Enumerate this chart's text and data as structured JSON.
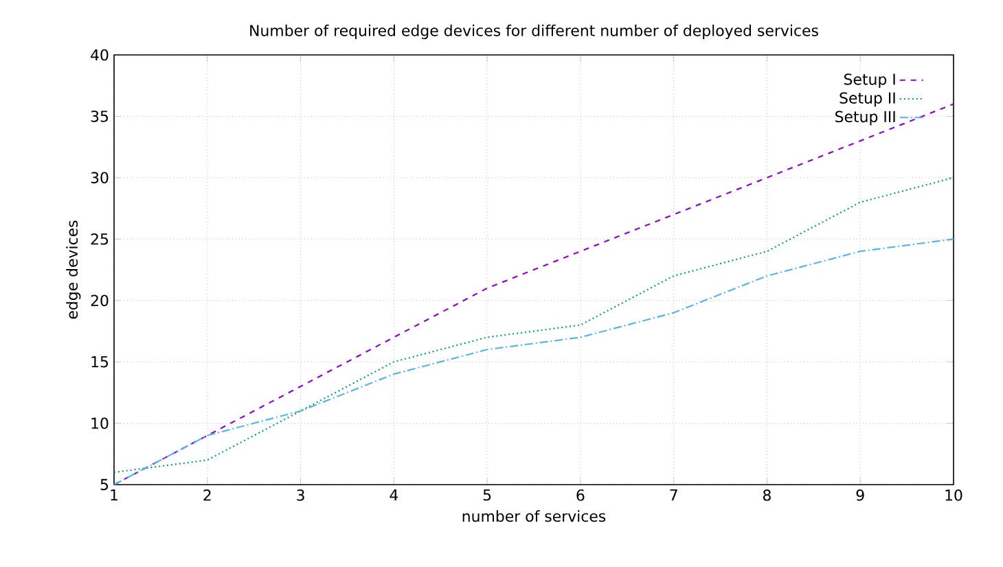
{
  "chart_data": {
    "type": "line",
    "title": "Number of required edge devices for different number of deployed services",
    "xlabel": "number of services",
    "ylabel": "edge devices",
    "x": [
      1,
      2,
      3,
      4,
      5,
      6,
      7,
      8,
      9,
      10
    ],
    "xlim": [
      1,
      10
    ],
    "ylim": [
      5,
      40
    ],
    "xticks": [
      1,
      2,
      3,
      4,
      5,
      6,
      7,
      8,
      9,
      10
    ],
    "yticks": [
      5,
      10,
      15,
      20,
      25,
      30,
      35,
      40
    ],
    "grid": true,
    "legend": "top right",
    "marker": "none",
    "series": [
      {
        "name": "Setup I",
        "color": "#9400d3",
        "line_style": "dashed",
        "values": [
          5,
          9,
          13,
          17,
          21,
          24,
          27,
          30,
          33,
          36
        ]
      },
      {
        "name": "Setup II",
        "color": "#009e73",
        "line_style": "dotted",
        "values": [
          6,
          7,
          11,
          15,
          17,
          18,
          22,
          24,
          28,
          30
        ]
      },
      {
        "name": "Setup III",
        "color": "#56b4e9",
        "line_style": "dashdot",
        "values": [
          5,
          9,
          11,
          14,
          16,
          17,
          19,
          22,
          24,
          25
        ]
      }
    ]
  }
}
